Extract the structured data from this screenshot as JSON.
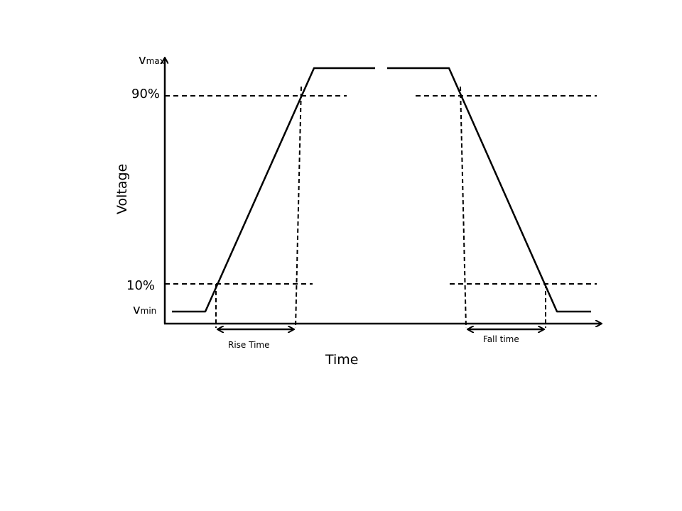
{
  "diagram": {
    "y_axis_label": "Voltage",
    "x_axis_label": "Time",
    "vmax": {
      "symbol": "v",
      "subscript": "max"
    },
    "vmin": {
      "symbol": "v",
      "subscript": "min"
    },
    "level_high": "90%",
    "level_low": "10%",
    "rise_label": "Rise Time",
    "fall_label": "Fall time"
  }
}
